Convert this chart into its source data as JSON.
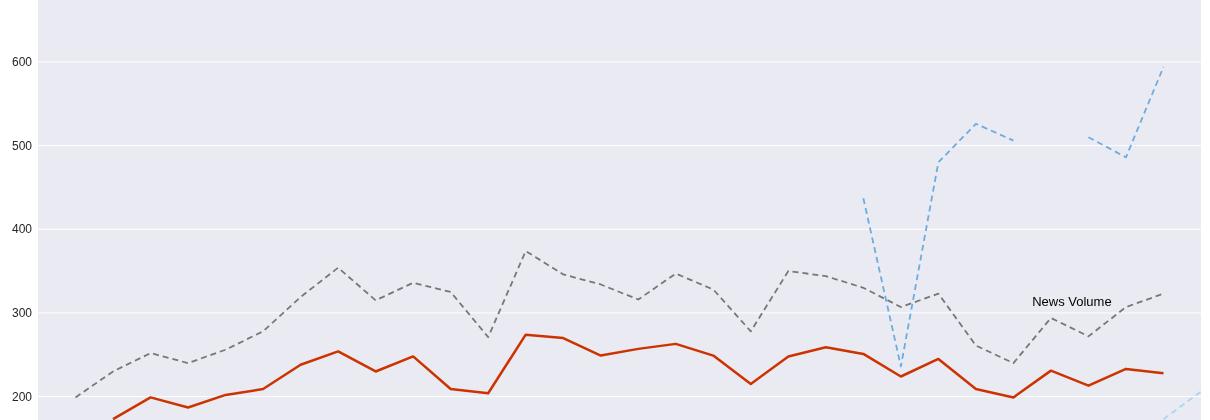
{
  "chart_data": {
    "type": "line",
    "categories": [
      null,
      null,
      null,
      null,
      null,
      null,
      null,
      null,
      null,
      null,
      null,
      null,
      null,
      null,
      null,
      null,
      null,
      null,
      null,
      null,
      null,
      null,
      null,
      null,
      null,
      null,
      null,
      null,
      null,
      null,
      null,
      null
    ],
    "ylim": [
      172,
      674
    ],
    "yticks": [
      200,
      300,
      400,
      500,
      600
    ],
    "grid": "y",
    "tick_labels": "y",
    "series": [
      {
        "name": "News Volume",
        "color": "#777777",
        "line_style": "dashed",
        "values": [
          null,
          199,
          230,
          252,
          240,
          256,
          278,
          319,
          354,
          315,
          336,
          325,
          271,
          374,
          346,
          334,
          316,
          347,
          328,
          278,
          350,
          344,
          330,
          307,
          323,
          261,
          240,
          294,
          272,
          307,
          323,
          null
        ]
      },
      {
        "color": "#cc3300",
        "line_style": "solid",
        "values": [
          null,
          null,
          173,
          199,
          187,
          202,
          209,
          238,
          254,
          230,
          248,
          209,
          204,
          274,
          270,
          249,
          257,
          263,
          249,
          215,
          248,
          259,
          251,
          224,
          245,
          209,
          199,
          231,
          213,
          233,
          228,
          null
        ]
      },
      {
        "color": "#6aaddf",
        "line_style": "dashed",
        "values": [
          null,
          null,
          null,
          null,
          null,
          null,
          null,
          null,
          null,
          null,
          null,
          null,
          null,
          null,
          null,
          null,
          null,
          null,
          null,
          null,
          null,
          null,
          437,
          236,
          480,
          526,
          506,
          null,
          510,
          486,
          594,
          null
        ]
      },
      {
        "color": "#a9d6f2",
        "line_style": "dashed",
        "values": [
          null,
          null,
          null,
          null,
          null,
          null,
          null,
          null,
          null,
          null,
          null,
          null,
          null,
          null,
          null,
          null,
          null,
          null,
          null,
          null,
          null,
          null,
          null,
          null,
          null,
          null,
          null,
          null,
          null,
          null,
          173,
          206
        ]
      }
    ]
  }
}
